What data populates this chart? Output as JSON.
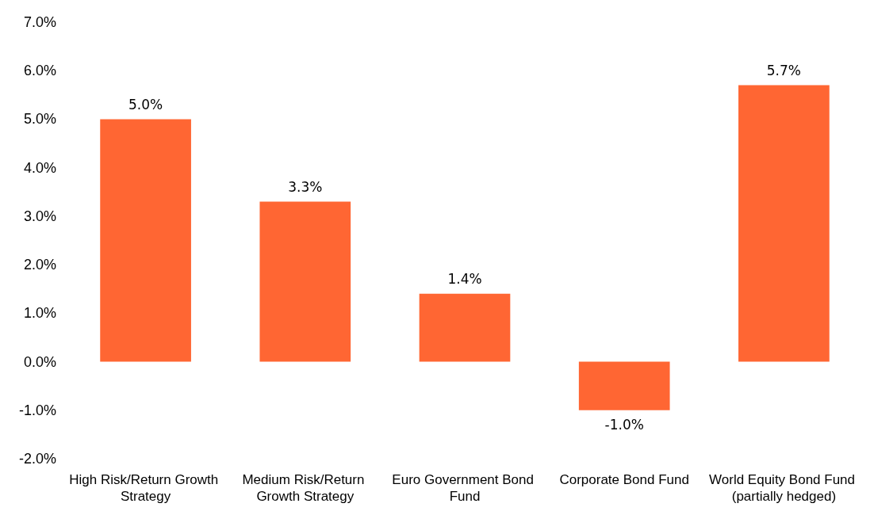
{
  "chart_data": {
    "type": "bar",
    "categories": [
      "High Risk/Return Growth Strategy",
      "Medium Risk/Return Growth Strategy",
      "Euro Government Bond Fund",
      "Corporate Bond Fund",
      "World Equity Bond Fund (partially hedged)"
    ],
    "values": [
      5.0,
      3.3,
      1.4,
      -1.0,
      5.7
    ],
    "value_labels": [
      "5.0%",
      "3.3%",
      "1.4%",
      "-1.0%",
      "5.7%"
    ],
    "color": "#ff6633",
    "ylim": [
      -2,
      7
    ],
    "yticks": [
      {
        "value": -2,
        "label": "-2.0%"
      },
      {
        "value": -1,
        "label": "-1.0%"
      },
      {
        "value": 0,
        "label": "0.0%"
      },
      {
        "value": 1,
        "label": "1.0%"
      },
      {
        "value": 2,
        "label": "2.0%"
      },
      {
        "value": 3,
        "label": "3.0%"
      },
      {
        "value": 4,
        "label": "4.0%"
      },
      {
        "value": 5,
        "label": "5.0%"
      },
      {
        "value": 6,
        "label": "6.0%"
      },
      {
        "value": 7,
        "label": "7.0%"
      }
    ],
    "grid": false
  }
}
